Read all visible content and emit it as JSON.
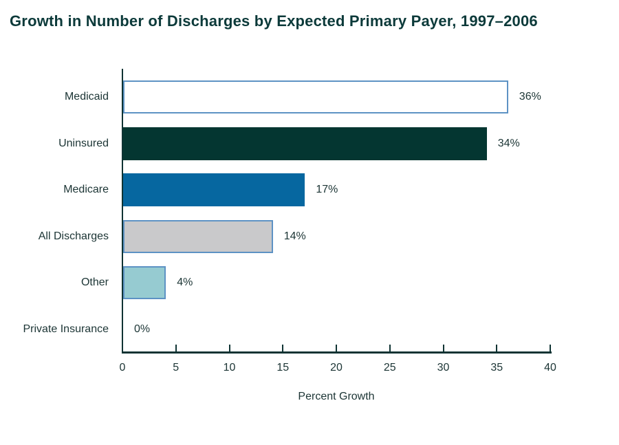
{
  "page": {
    "background": "#ffffff"
  },
  "chart_data": {
    "type": "bar",
    "orientation": "horizontal",
    "title": "Growth in Number of Discharges by Expected Primary Payer, 1997–2006",
    "xlabel": "Percent Growth",
    "xlim": [
      0,
      40
    ],
    "xticks": [
      0,
      5,
      10,
      15,
      20,
      25,
      30,
      35,
      40
    ],
    "grid": false,
    "legend": "none",
    "categories": [
      "Medicaid",
      "Uninsured",
      "Medicare",
      "All Discharges",
      "Other",
      "Private Insurance"
    ],
    "values": [
      36,
      34,
      17,
      14,
      4,
      0
    ],
    "value_labels": [
      "36%",
      "34%",
      "17%",
      "14%",
      "4%",
      "0%"
    ],
    "bar_fills": [
      "#ffffff",
      "#043631",
      "#0667a0",
      "#c9c9cb",
      "#96cbd1",
      null
    ],
    "bar_borders": [
      "#5d92c4",
      null,
      null,
      "#5d92c4",
      "#5d92c4",
      null
    ],
    "colors": {
      "title_text": "#0c3a3a",
      "label_text": "#1b3434",
      "axis": "#0f3333",
      "bar_border_blue": "#5d92c4"
    }
  }
}
